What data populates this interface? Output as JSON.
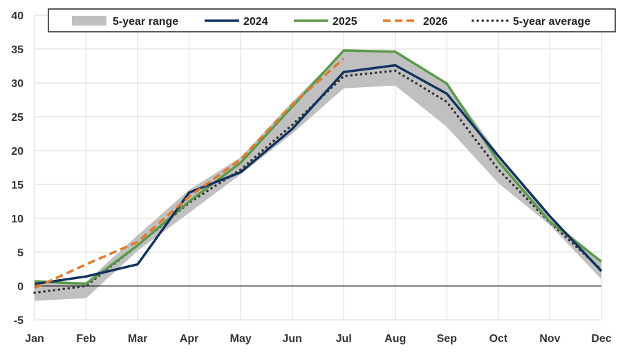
{
  "chart_data": {
    "type": "line",
    "title": "",
    "xlabel": "",
    "ylabel": "",
    "categories": [
      "Jan",
      "Feb",
      "Mar",
      "Apr",
      "May",
      "Jun",
      "Jul",
      "Aug",
      "Sep",
      "Oct",
      "Nov",
      "Dec"
    ],
    "ylim": [
      -5,
      40
    ],
    "yticks": [
      -5,
      0,
      5,
      10,
      15,
      20,
      25,
      30,
      35,
      40
    ],
    "grid": true,
    "legend_position": "top",
    "range": {
      "name": "5-year range",
      "color": "#c0c0c0",
      "low": [
        -2.2,
        -1.8,
        5.2,
        10.8,
        16.5,
        22.5,
        29.2,
        29.6,
        23.5,
        15.2,
        9.0,
        1.0
      ],
      "high": [
        0.7,
        0.6,
        7.5,
        14.2,
        19.0,
        27.2,
        34.8,
        34.6,
        30.0,
        19.5,
        10.0,
        3.8
      ]
    },
    "series": [
      {
        "name": "2024",
        "color": "#12335e",
        "style": "solid",
        "values": [
          0.3,
          1.4,
          3.2,
          13.8,
          16.8,
          23.2,
          31.6,
          32.6,
          28.4,
          19.2,
          10.3,
          2.2
        ]
      },
      {
        "name": "2025",
        "color": "#5a9a4a",
        "style": "solid",
        "values": [
          0.7,
          0.3,
          6.0,
          12.5,
          18.2,
          26.5,
          34.8,
          34.6,
          29.9,
          18.4,
          9.5,
          3.6
        ]
      },
      {
        "name": "2026",
        "color": "#e07a2c",
        "style": "dashed",
        "values": [
          -0.3,
          3.2,
          6.5,
          13.2,
          18.7,
          26.8,
          33.6,
          null,
          null,
          null,
          null,
          null
        ]
      },
      {
        "name": "5-year average",
        "color": "#333333",
        "style": "dotted",
        "values": [
          -1.0,
          0.0,
          6.0,
          12.3,
          17.2,
          23.8,
          31.0,
          31.8,
          27.2,
          17.2,
          9.4,
          2.4
        ]
      }
    ],
    "legend": [
      "5-year range",
      "2024",
      "2025",
      "2026",
      "5-year average"
    ]
  }
}
